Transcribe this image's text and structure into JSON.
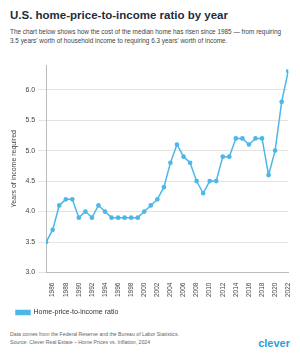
{
  "chart_data": {
    "type": "line",
    "title": "U.S. home-price-to-income ratio by year",
    "subtitle": "The chart below shows how the cost of the median home has risen since 1985 — from requiring 3.5 years' worth of household income to requiring 6.3 years' worth of income.",
    "y_label": "Years of income required",
    "categories": [
      null,
      "1986",
      null,
      "1988",
      null,
      "1990",
      null,
      "1992",
      null,
      "1994",
      null,
      "1996",
      null,
      "1998",
      null,
      "2000",
      null,
      "2002",
      null,
      "2004",
      null,
      "2006",
      null,
      "2008",
      null,
      "2010",
      null,
      "2012",
      null,
      "2014",
      null,
      "2016",
      null,
      "2018",
      null,
      "2020",
      null,
      "2022"
    ],
    "series": [
      {
        "name": "Home-price-to-income ratio",
        "color": "#4db8e8",
        "marker": "circle",
        "line_style": "solid",
        "values": [
          3.5,
          3.7,
          4.1,
          4.2,
          4.2,
          3.9,
          4.0,
          3.9,
          4.1,
          4.0,
          3.9,
          3.9,
          3.9,
          3.9,
          3.9,
          4.0,
          4.1,
          4.2,
          4.4,
          4.8,
          5.1,
          4.9,
          4.8,
          4.5,
          4.3,
          4.5,
          4.5,
          4.9,
          4.9,
          5.2,
          5.2,
          5.1,
          5.2,
          5.2,
          4.6,
          5.0,
          5.8,
          6.3
        ]
      }
    ],
    "ylim": [
      3.0,
      6.4
    ],
    "yticks": [
      {
        "value": 3,
        "label": "3.0"
      },
      3.5,
      {
        "value": 4,
        "label": "4.0"
      },
      4.5,
      {
        "value": 5,
        "label": "5.0"
      },
      5.5,
      {
        "value": 6,
        "label": "6.0"
      }
    ],
    "grid": true,
    "legend": "bottom",
    "notes": [
      "Data comes from the Federal Reserve and the Bureau of Labor Statistics.",
      "Source: Clever Real Estate – Home Prices vs. Inflation, 2024"
    ],
    "logo": "clever"
  }
}
